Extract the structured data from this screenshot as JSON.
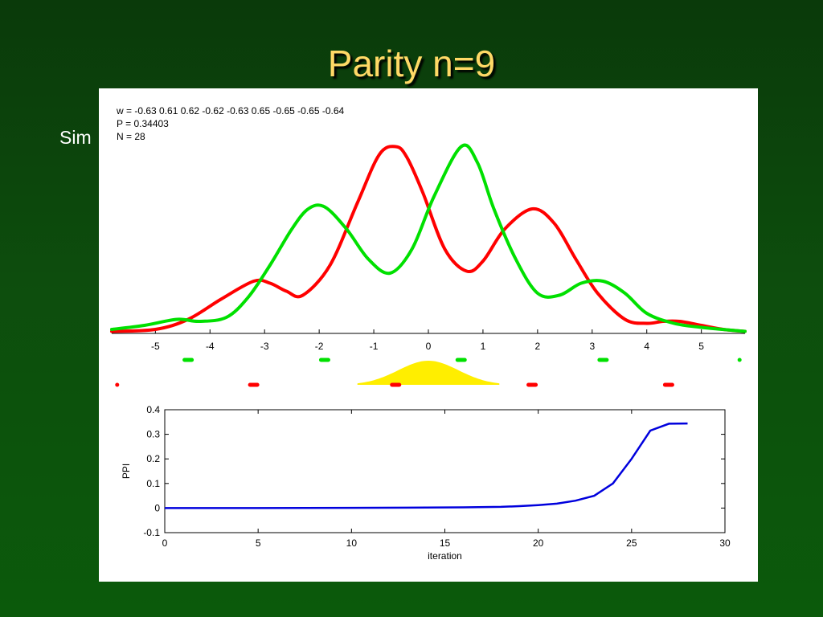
{
  "slide": {
    "title": "Parity n=9",
    "body_text": "Sim"
  },
  "chart_data": [
    {
      "type": "line",
      "annotations": [
        "w = -0.63  0.61  0.62  -0.62  -0.63  0.65  -0.65  -0.65  -0.64",
        "P = 0.34403",
        "N = 28"
      ],
      "xlim": [
        -5.8,
        5.8
      ],
      "x_ticks": [
        -5,
        -4,
        -3,
        -2,
        -1,
        0,
        1,
        2,
        3,
        4,
        5
      ],
      "grid": false,
      "series": [
        {
          "color": "#ff0000",
          "x": [
            -5.8,
            -5,
            -4.4,
            -3.8,
            -3.2,
            -2.9,
            -2.6,
            -2.3,
            -1.8,
            -1.3,
            -0.9,
            -0.6,
            -0.4,
            -0.1,
            0.3,
            0.7,
            1.0,
            1.4,
            1.9,
            2.3,
            2.7,
            3.1,
            3.6,
            4.0,
            4.3,
            4.6,
            5.0,
            5.4,
            5.8
          ],
          "y": [
            0.01,
            0.02,
            0.07,
            0.17,
            0.26,
            0.25,
            0.21,
            0.19,
            0.34,
            0.65,
            0.89,
            0.93,
            0.88,
            0.7,
            0.42,
            0.31,
            0.36,
            0.52,
            0.62,
            0.55,
            0.37,
            0.2,
            0.07,
            0.05,
            0.06,
            0.06,
            0.04,
            0.02,
            0.01
          ]
        },
        {
          "color": "#00e000",
          "x": [
            -5.8,
            -5.2,
            -4.6,
            -4.2,
            -3.7,
            -3.3,
            -2.9,
            -2.5,
            -2.2,
            -1.9,
            -1.5,
            -1.1,
            -0.7,
            -0.3,
            0.1,
            0.6,
            0.9,
            1.2,
            1.6,
            2.0,
            2.4,
            2.8,
            3.2,
            3.6,
            4.0,
            4.5,
            5.0,
            5.8
          ],
          "y": [
            0.02,
            0.04,
            0.07,
            0.06,
            0.08,
            0.18,
            0.34,
            0.52,
            0.62,
            0.63,
            0.52,
            0.37,
            0.3,
            0.42,
            0.68,
            0.93,
            0.85,
            0.62,
            0.37,
            0.2,
            0.19,
            0.25,
            0.26,
            0.2,
            0.1,
            0.05,
            0.03,
            0.01
          ]
        }
      ],
      "markers": [
        {
          "color": "#00e000",
          "x": [
            -4.4,
            -1.9,
            0.6,
            3.2,
            5.7
          ]
        },
        {
          "color": "#ff0000",
          "x": [
            -5.7,
            -3.2,
            -0.6,
            1.9,
            4.4
          ]
        }
      ],
      "filled_curve": {
        "color": "#ffee00",
        "center": 0,
        "sigma": 0.55,
        "xlim": [
          -1.3,
          1.3
        ]
      }
    },
    {
      "type": "line",
      "xlabel": "iteration",
      "ylabel": "PPI",
      "xlim": [
        0,
        30
      ],
      "ylim": [
        -0.1,
        0.4
      ],
      "x_ticks": [
        0,
        5,
        10,
        15,
        20,
        25,
        30
      ],
      "y_ticks": [
        -0.1,
        0,
        0.1,
        0.2,
        0.3,
        0.4
      ],
      "series": [
        {
          "color": "#0000dd",
          "x": [
            0,
            5,
            10,
            14,
            16,
            18,
            19,
            20,
            21,
            22,
            23,
            24,
            25,
            26,
            27,
            28
          ],
          "y": [
            0,
            0,
            0.001,
            0.002,
            0.003,
            0.005,
            0.008,
            0.012,
            0.018,
            0.03,
            0.05,
            0.1,
            0.2,
            0.315,
            0.343,
            0.344
          ]
        }
      ]
    }
  ]
}
